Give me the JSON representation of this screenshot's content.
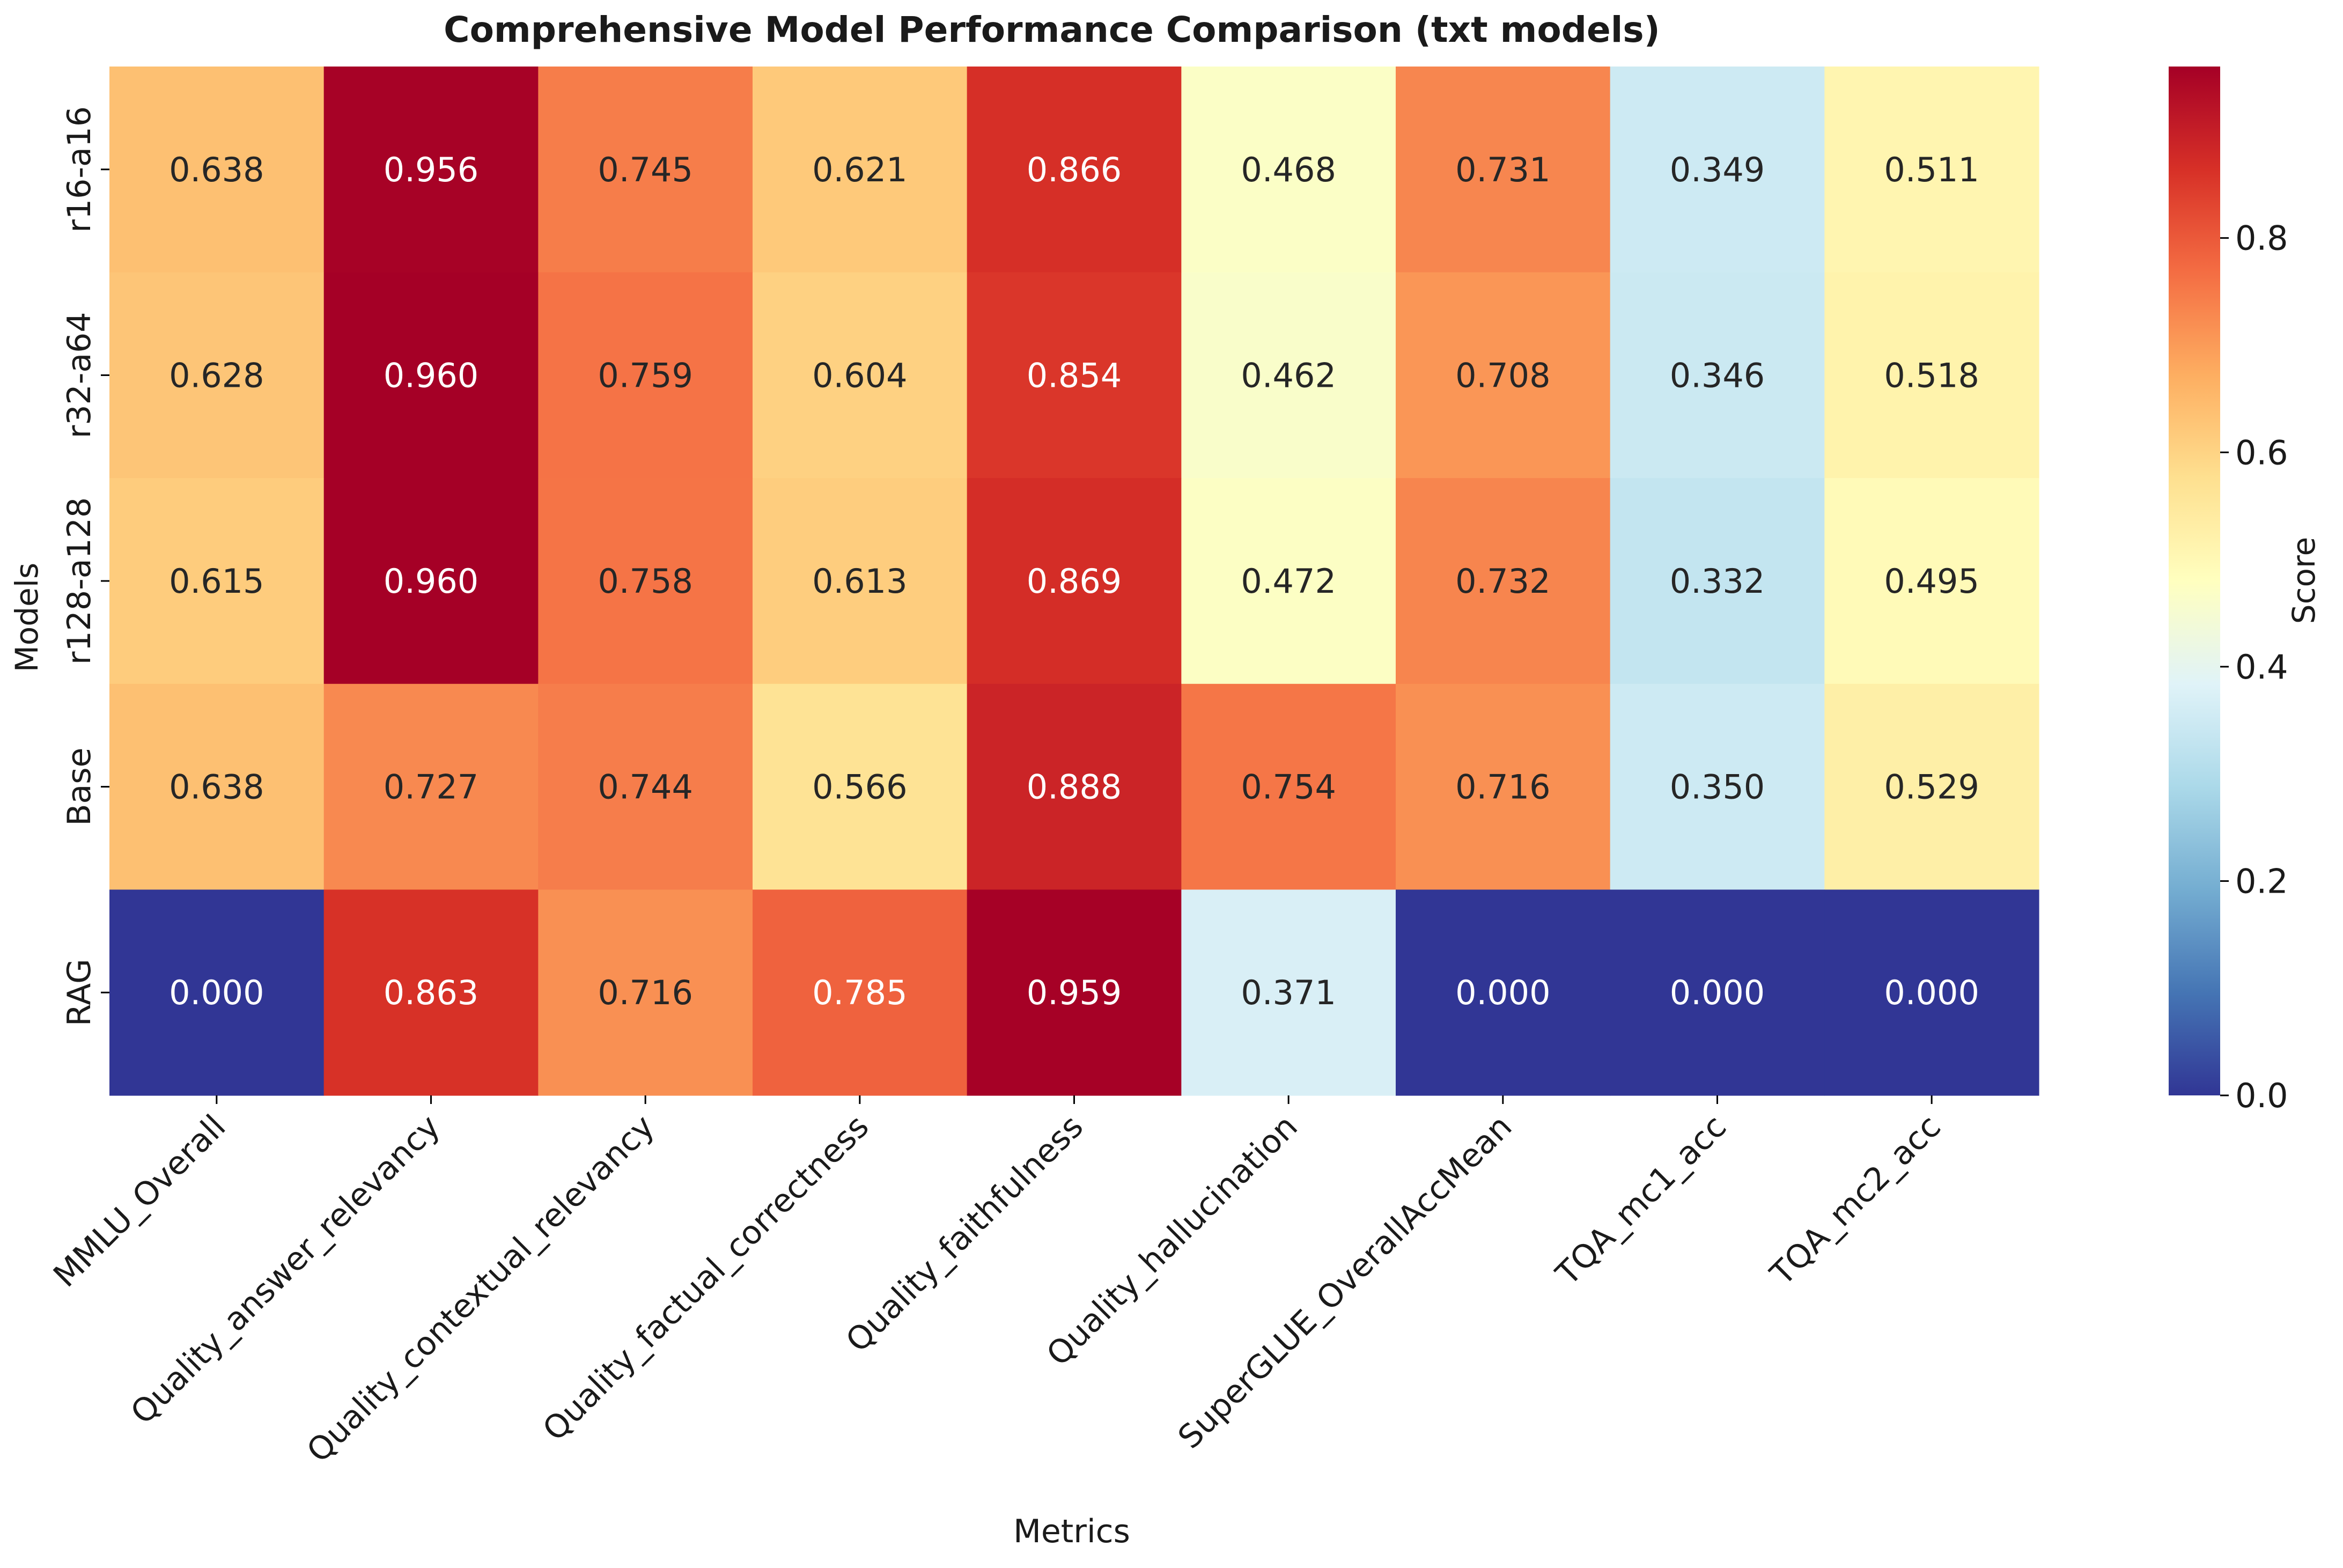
{
  "chart_data": {
    "type": "heatmap",
    "title": "Comprehensive Model Performance Comparison (txt models)",
    "xlabel": "Metrics",
    "ylabel": "Models",
    "rows": [
      "r16-a16",
      "r32-a64",
      "r128-a128",
      "Base",
      "RAG"
    ],
    "columns": [
      "MMLU_Overall",
      "Quality_answer_relevancy",
      "Quality_contextual_relevancy",
      "Quality_factual_correctness",
      "Quality_faithfulness",
      "Quality_hallucination",
      "SuperGLUE_OverallAccMean",
      "TQA_mc1_acc",
      "TQA_mc2_acc"
    ],
    "values": [
      [
        0.638,
        0.956,
        0.745,
        0.621,
        0.866,
        0.468,
        0.731,
        0.349,
        0.511
      ],
      [
        0.628,
        0.96,
        0.759,
        0.604,
        0.854,
        0.462,
        0.708,
        0.346,
        0.518
      ],
      [
        0.615,
        0.96,
        0.758,
        0.613,
        0.869,
        0.472,
        0.732,
        0.332,
        0.495
      ],
      [
        0.638,
        0.727,
        0.744,
        0.566,
        0.888,
        0.754,
        0.716,
        0.35,
        0.529
      ],
      [
        0.0,
        0.863,
        0.716,
        0.785,
        0.959,
        0.371,
        0.0,
        0.0,
        0.0
      ]
    ],
    "value_format": "3 decimals",
    "colormap": "RdYlBu_r",
    "colorbar": {
      "label": "Score",
      "range": [
        0,
        0.96
      ],
      "ticks": [
        "0.0",
        "0.2",
        "0.4",
        "0.6",
        "0.8"
      ]
    }
  }
}
